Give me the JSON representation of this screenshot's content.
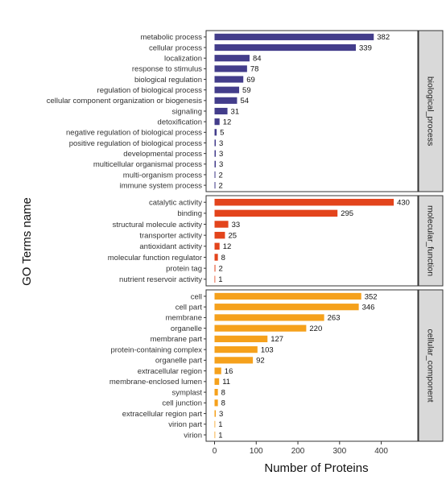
{
  "chart_data": {
    "type": "bar",
    "orientation": "horizontal",
    "xlabel": "Number of Proteins",
    "ylabel": "GO Terms name",
    "xlim": [
      0,
      480
    ],
    "xticks": [
      0,
      100,
      200,
      300,
      400
    ],
    "grid": false,
    "legend": "none",
    "facets": [
      {
        "name": "biological_process",
        "color": "#433d8b",
        "categories": [
          "metabolic process",
          "cellular process",
          "localization",
          "response to stimulus",
          "biological regulation",
          "regulation of biological process",
          "cellular component organization or biogenesis",
          "signaling",
          "detoxification",
          "negative regulation of biological process",
          "positive regulation of biological process",
          "developmental process",
          "multicellular organismal process",
          "multi-organism process",
          "immune system process"
        ],
        "values": [
          382,
          339,
          84,
          78,
          69,
          59,
          54,
          31,
          12,
          5,
          3,
          3,
          3,
          2,
          2
        ]
      },
      {
        "name": "molecular_function",
        "color": "#e3441c",
        "categories": [
          "catalytic activity",
          "binding",
          "structural molecule activity",
          "transporter activity",
          "antioxidant activity",
          "molecular function regulator",
          "protein tag",
          "nutrient reservoir activity"
        ],
        "values": [
          430,
          295,
          33,
          25,
          12,
          8,
          2,
          1
        ]
      },
      {
        "name": "cellular_component",
        "color": "#f5a11c",
        "categories": [
          "cell",
          "cell part",
          "membrane",
          "organelle",
          "membrane part",
          "protein-containing complex",
          "organelle part",
          "extracellular region",
          "membrane-enclosed lumen",
          "symplast",
          "cell junction",
          "extracellular region part",
          "virion part",
          "virion"
        ],
        "values": [
          352,
          346,
          263,
          220,
          127,
          103,
          92,
          16,
          11,
          8,
          8,
          3,
          1,
          1
        ]
      }
    ]
  }
}
